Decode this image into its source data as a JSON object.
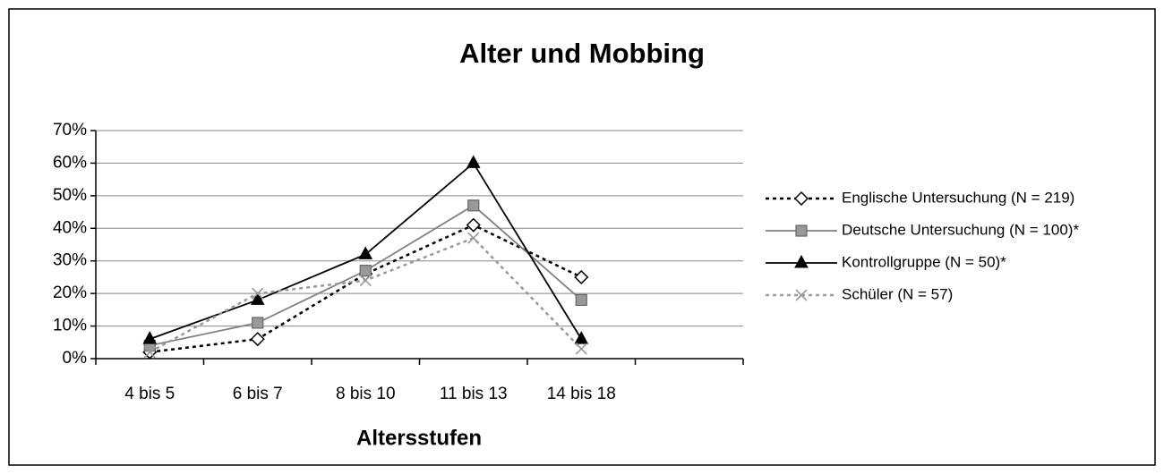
{
  "chart_data": {
    "type": "line",
    "title": "Alter und Mobbing",
    "x_label": "Altersstufen",
    "categories": [
      "4 bis 5",
      "6 bis 7",
      "8 bis 10",
      "11 bis 13",
      "14 bis 18",
      null
    ],
    "series": [
      {
        "name": "Englische Untersuchung (N = 219)",
        "color": "#000000",
        "dash": "dotted",
        "marker": "diamond",
        "values": [
          2,
          6,
          26,
          41,
          25,
          null
        ]
      },
      {
        "name": "Deutsche Untersuchung (N = 100)*",
        "color": "#808080",
        "dash": "solid",
        "marker": "square",
        "values": [
          4,
          11,
          27,
          47,
          18,
          null
        ]
      },
      {
        "name": "Kontrollgruppe (N = 50)*",
        "color": "#000000",
        "dash": "solid",
        "marker": "triangle",
        "values": [
          6,
          18,
          32,
          60,
          6,
          null
        ]
      },
      {
        "name": "Schüler (N = 57)",
        "color": "#999999",
        "dash": "dotted",
        "marker": "x",
        "values": [
          2,
          20,
          24,
          37,
          3,
          null
        ]
      }
    ],
    "ylim": [
      0,
      70
    ],
    "yticks": [
      {
        "value": 0,
        "label": "0%"
      },
      {
        "value": 10,
        "label": "10%"
      },
      {
        "value": 20,
        "label": "20%"
      },
      {
        "value": 30,
        "label": "30%"
      },
      {
        "value": 40,
        "label": "40%"
      },
      {
        "value": 50,
        "label": "50%"
      },
      {
        "value": 60,
        "label": "60%"
      },
      {
        "value": 70,
        "label": "70%"
      }
    ],
    "grid": true,
    "legend": "right"
  }
}
